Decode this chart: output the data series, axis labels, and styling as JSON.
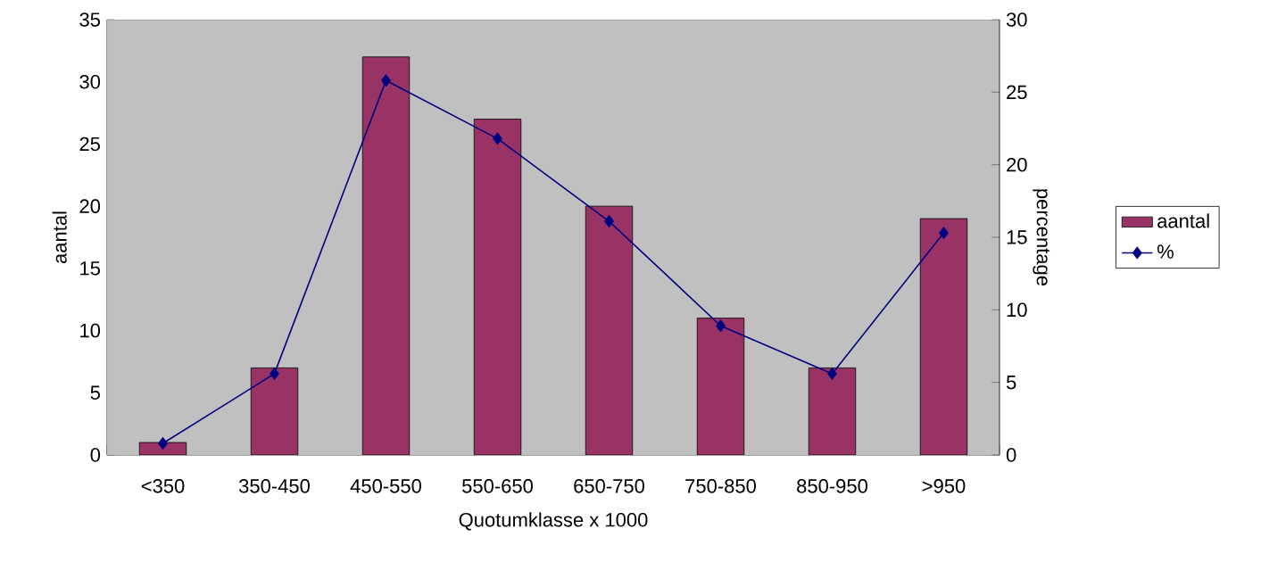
{
  "chart_data": {
    "type": "bar",
    "xlabel": "Quotumklasse x 1000",
    "ylabel": "aantal",
    "y2label": "percentage",
    "categories": [
      "<350",
      "350-450",
      "450-550",
      "550-650",
      "650-750",
      "750-850",
      "850-950",
      ">950"
    ],
    "series": [
      {
        "name": "aantal",
        "color": "#993366",
        "values": [
          1,
          7,
          32,
          27,
          20,
          11,
          7,
          19
        ]
      },
      {
        "name": "%",
        "type": "line",
        "axis": "y2",
        "color": "#000080",
        "marker": "diamond",
        "line_style": "solid",
        "values": [
          0.8,
          5.6,
          25.8,
          21.8,
          16.1,
          8.9,
          5.6,
          15.3
        ]
      }
    ],
    "ylim": [
      0,
      35
    ],
    "yticks": [
      0,
      5,
      10,
      15,
      20,
      25,
      30,
      35
    ],
    "y2lim": [
      0,
      30
    ],
    "y2ticks": [
      0,
      5,
      10,
      15,
      20,
      25,
      30
    ],
    "grid": false,
    "legend": "right"
  }
}
